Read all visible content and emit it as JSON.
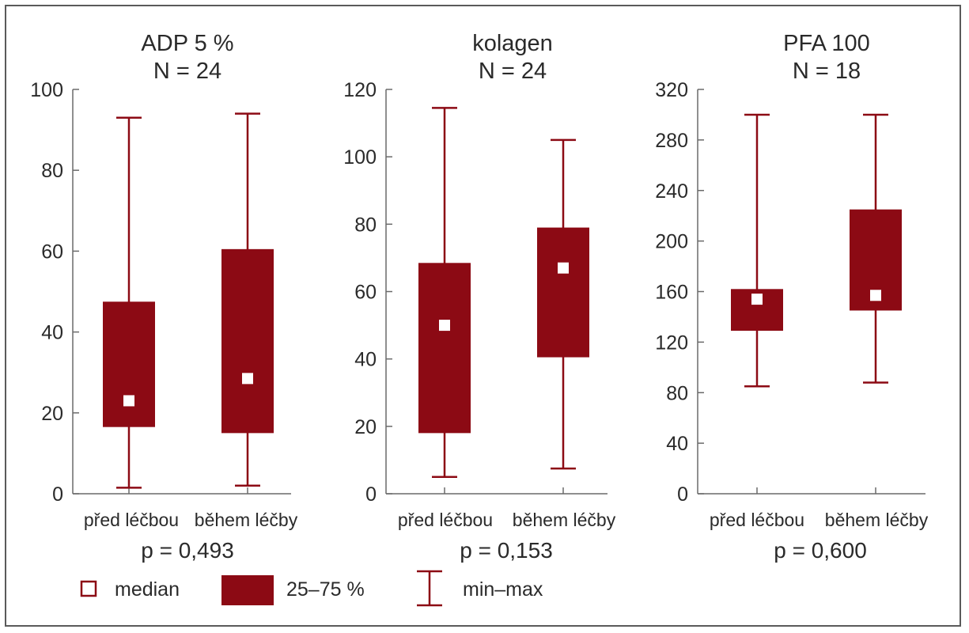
{
  "colors": {
    "box": "#8c0a14",
    "median_fill": "#ffffff",
    "axis": "#6a6a6a",
    "text": "#2a2a2a",
    "frame": "#5a5a5a"
  },
  "chart_data": [
    {
      "type": "box",
      "title_lines": [
        "ADP 5 %",
        "N = 24"
      ],
      "categories": [
        "před léčbou",
        "během léčby"
      ],
      "ylim": [
        0,
        100
      ],
      "yticks": [
        0,
        20,
        40,
        60,
        80,
        100
      ],
      "boxes": [
        {
          "min": 1.5,
          "q1": 16.5,
          "median": 23,
          "q3": 47.5,
          "max": 93
        },
        {
          "min": 2,
          "q1": 15,
          "median": 28.5,
          "q3": 60.5,
          "max": 94
        }
      ],
      "p_value": "p = 0,493"
    },
    {
      "type": "box",
      "title_lines": [
        "kolagen",
        "N = 24"
      ],
      "categories": [
        "před léčbou",
        "během léčby"
      ],
      "ylim": [
        0,
        120
      ],
      "yticks": [
        0,
        20,
        40,
        60,
        80,
        100,
        120
      ],
      "boxes": [
        {
          "min": 5,
          "q1": 18,
          "median": 50,
          "q3": 68.5,
          "max": 114.5
        },
        {
          "min": 7.5,
          "q1": 40.5,
          "median": 67,
          "q3": 79,
          "max": 105
        }
      ],
      "p_value": "p = 0,153"
    },
    {
      "type": "box",
      "title_lines": [
        "PFA 100",
        "N = 18"
      ],
      "categories": [
        "před léčbou",
        "během léčby"
      ],
      "ylim": [
        0,
        320
      ],
      "yticks": [
        0,
        40,
        80,
        120,
        160,
        200,
        240,
        280,
        320
      ],
      "boxes": [
        {
          "min": 85,
          "q1": 129,
          "median": 154,
          "q3": 162,
          "max": 300
        },
        {
          "min": 88,
          "q1": 145,
          "median": 157,
          "q3": 225,
          "max": 300
        }
      ],
      "p_value": "p = 0,600"
    }
  ],
  "legend": {
    "median": "median",
    "box": "25–75 %",
    "whisker": "min–max"
  }
}
